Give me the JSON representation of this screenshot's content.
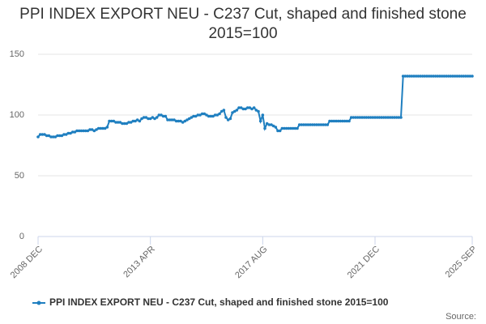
{
  "chart_data": {
    "type": "line",
    "title": "PPI INDEX EXPORT NEU - C237 Cut, shaped and finished stone 2015=100",
    "source": "Source:",
    "categories": [
      "2008 DEC",
      null,
      null,
      null,
      null,
      null,
      null,
      null,
      null,
      null,
      null,
      null,
      null,
      null,
      null,
      null,
      null,
      null,
      null,
      null,
      null,
      null,
      null,
      null,
      null,
      null,
      null,
      null,
      null,
      null,
      null,
      null,
      null,
      null,
      null,
      null,
      null,
      null,
      null,
      null,
      null,
      null,
      null,
      null,
      null,
      null,
      null,
      null,
      null,
      null,
      null,
      null,
      "2013 APR",
      null,
      null,
      null,
      null,
      null,
      null,
      null,
      null,
      null,
      null,
      null,
      null,
      null,
      null,
      null,
      null,
      null,
      null,
      null,
      null,
      null,
      null,
      null,
      null,
      null,
      null,
      null,
      null,
      null,
      null,
      null,
      null,
      null,
      null,
      null,
      null,
      null,
      null,
      null,
      null,
      null,
      null,
      null,
      null,
      null,
      null,
      null,
      null,
      null,
      null,
      null,
      "2017 AUG",
      null,
      null,
      null,
      null,
      null,
      null,
      null,
      null,
      null,
      null,
      null,
      null,
      null,
      null,
      null,
      null,
      null,
      null,
      null,
      null,
      null,
      null,
      null,
      null,
      null,
      null,
      null,
      null,
      null,
      null,
      null,
      null,
      null,
      null,
      null,
      null,
      null,
      null,
      null,
      null,
      null,
      null,
      null,
      null,
      null,
      null,
      null,
      null,
      null,
      null,
      null,
      "2021 DEC",
      null,
      null,
      null,
      null,
      null,
      null,
      null,
      null,
      null,
      null,
      null,
      null,
      null,
      null,
      null,
      null,
      null,
      null,
      null,
      null,
      null,
      null,
      null,
      null,
      null,
      null,
      null,
      null,
      null,
      null,
      null,
      null,
      null,
      null,
      null,
      null,
      null,
      null,
      null,
      null,
      null,
      null,
      null,
      null,
      "2025 SEP"
    ],
    "series": [
      {
        "name": "PPI INDEX EXPORT NEU - C237 Cut, shaped and finished stone 2015=100",
        "color": "#1f7fc0",
        "values": [
          82,
          84,
          84,
          84,
          83,
          83,
          82,
          82,
          82,
          83,
          83,
          83,
          84,
          84,
          85,
          85,
          86,
          86,
          87,
          87,
          87,
          87,
          87,
          87,
          88,
          88,
          87,
          88,
          89,
          89,
          89,
          89,
          90,
          95,
          95,
          95,
          94,
          94,
          94,
          93,
          93,
          93,
          94,
          94,
          95,
          95,
          96,
          95,
          97,
          98,
          98,
          97,
          97,
          98,
          97,
          98,
          100,
          100,
          99,
          99,
          96,
          96,
          96,
          96,
          95,
          95,
          95,
          94,
          95,
          96,
          97,
          98,
          99,
          99,
          100,
          100,
          101,
          101,
          100,
          99,
          99,
          99,
          100,
          100,
          101,
          103,
          104,
          98,
          96,
          97,
          102,
          103,
          104,
          106,
          106,
          105,
          105,
          106,
          106,
          105,
          106,
          104,
          103,
          95,
          100,
          89,
          93,
          92,
          92,
          91,
          90,
          87,
          87,
          89,
          89,
          89,
          89,
          89,
          89,
          89,
          89,
          92,
          92,
          92,
          92,
          92,
          92,
          92,
          92,
          92,
          92,
          92,
          92,
          92,
          92,
          95,
          95,
          95,
          95,
          95,
          95,
          95,
          95,
          95,
          95,
          98,
          98,
          98,
          98,
          98,
          98,
          98,
          98,
          98,
          98,
          98,
          98,
          98,
          98,
          98,
          98,
          98,
          98,
          98,
          98,
          98,
          98,
          98,
          98,
          132,
          132,
          132,
          132,
          132,
          132,
          132,
          132,
          132,
          132,
          132,
          132,
          132,
          132,
          132,
          132,
          132,
          132,
          132,
          132,
          132,
          132,
          132,
          132,
          132,
          132,
          132,
          132,
          132,
          132,
          132,
          132,
          132
        ]
      }
    ],
    "ylim": [
      0,
      150
    ],
    "yticks": [
      0,
      50,
      100,
      150
    ],
    "grid": true
  }
}
